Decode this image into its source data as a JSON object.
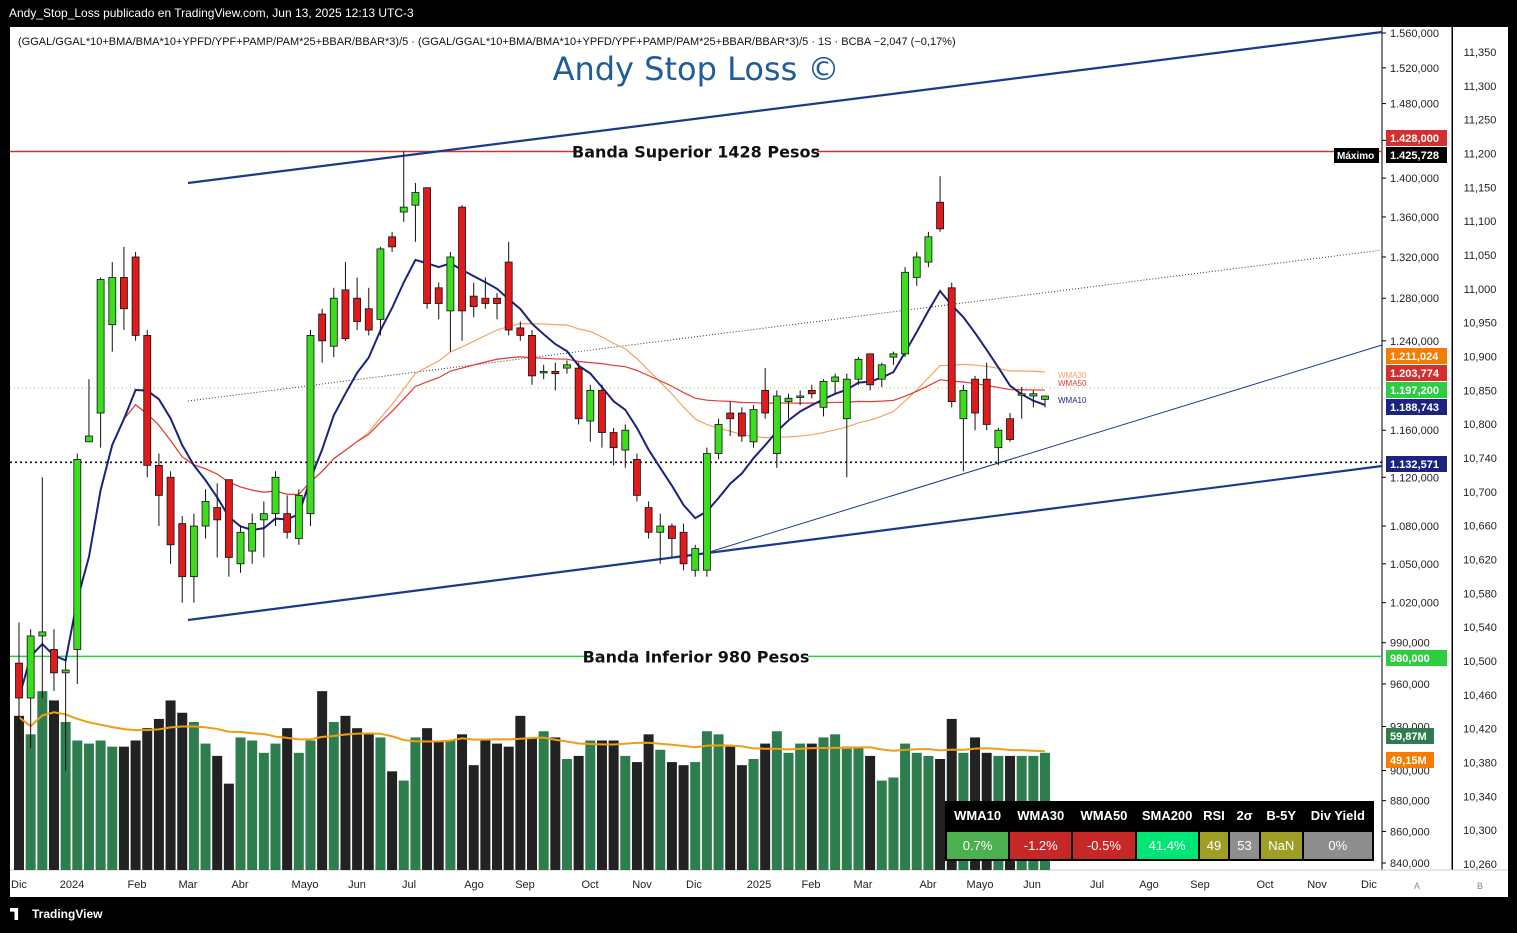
{
  "header": {
    "publisher_line": "Andy_Stop_Loss publicado en TradingView.com, Jun 13, 2025 12:13 UTC-3"
  },
  "footer": {
    "brand": "TradingView"
  },
  "chart_data": {
    "type": "candlestick",
    "symbol_line": "(GGAL/GGAL*10+BMA/BMA*10+YPFD/YPF+PAMP/PAM*25+BBAR/BBAR*3)/5 · (GGAL/GGAL*10+BMA/BMA*10+YPFD/YPF+PAMP/PAM*25+BBAR/BBAR*3)/5 · 1S · BCBA  −2,047 (−0,17%)",
    "watermark": "Andy Stop Loss ©",
    "x_tick_labels": [
      "Dic",
      "2024",
      "Feb",
      "Mar",
      "Abr",
      "Mayo",
      "Jun",
      "Jul",
      "Ago",
      "Sep",
      "Oct",
      "Nov",
      "Dic",
      "2025",
      "Feb",
      "Mar",
      "Abr",
      "Mayo",
      "Jun",
      "Jul",
      "Ago",
      "Sep",
      "Oct",
      "Nov",
      "Dic"
    ],
    "y_tick_labels": [
      "1.560,000",
      "1.520,000",
      "1.480,000",
      "1.440,000",
      "1.400,000",
      "1.360,000",
      "1.320,000",
      "1.280,000",
      "1.240,000",
      "1.160,000",
      "1.120,000",
      "1.080,000",
      "1.050,000",
      "1.020,000",
      "990,000",
      "960,000",
      "930,000",
      "900,000",
      "880,000",
      "860,000",
      "840,000"
    ],
    "y2_tick_labels": [
      "11,350",
      "11,300",
      "11,250",
      "11,200",
      "11,150",
      "11,100",
      "11,050",
      "11,000",
      "10,950",
      "10,900",
      "10,850",
      "10,800",
      "10,740",
      "10,700",
      "10,660",
      "10,620",
      "10,580",
      "10,540",
      "10,500",
      "10,460",
      "10,420",
      "10,380",
      "10,340",
      "10,300",
      "10,260"
    ],
    "y2_footer": [
      "A",
      "B"
    ],
    "annotations": {
      "upper_band": "Banda Superior 1428 Pesos",
      "lower_band": "Banda Inferior 980 Pesos",
      "maximo_label": "Máximo",
      "ma_labels": [
        "WMA30",
        "WMA50",
        "WMA10"
      ]
    },
    "price_labels": [
      {
        "text": "1.428,000",
        "color": "#d32f2f"
      },
      {
        "text": "1.425,728",
        "color": "#000000"
      },
      {
        "text": "1.211,024",
        "color": "#f57c00"
      },
      {
        "text": "1.203,774",
        "color": "#d32f2f"
      },
      {
        "text": "1.197,200",
        "color": "#2ecc40"
      },
      {
        "text": "1.188,743",
        "color": "#1a237e"
      },
      {
        "text": "1.132,571",
        "color": "#1a237e"
      },
      {
        "text": "980,000",
        "color": "#2ecc40"
      },
      {
        "text": "59,87M",
        "color": "#2e7d4f"
      },
      {
        "text": "49,15M",
        "color": "#f57c00"
      }
    ],
    "candles": [
      {
        "o": 975,
        "h": 1005,
        "l": 920,
        "c": 950
      },
      {
        "o": 950,
        "h": 1000,
        "l": 915,
        "c": 995
      },
      {
        "o": 995,
        "h": 1120,
        "l": 950,
        "c": 998
      },
      {
        "o": 985,
        "h": 1000,
        "l": 955,
        "c": 968
      },
      {
        "o": 968,
        "h": 978,
        "l": 900,
        "c": 970
      },
      {
        "o": 985,
        "h": 1140,
        "l": 960,
        "c": 1135
      },
      {
        "o": 1150,
        "h": 1205,
        "l": 1150,
        "c": 1155
      },
      {
        "o": 1175,
        "h": 1300,
        "l": 1145,
        "c": 1298
      },
      {
        "o": 1255,
        "h": 1315,
        "l": 1230,
        "c": 1300
      },
      {
        "o": 1300,
        "h": 1330,
        "l": 1250,
        "c": 1270
      },
      {
        "o": 1320,
        "h": 1325,
        "l": 1240,
        "c": 1245
      },
      {
        "o": 1245,
        "h": 1250,
        "l": 1120,
        "c": 1130
      },
      {
        "o": 1130,
        "h": 1140,
        "l": 1080,
        "c": 1105
      },
      {
        "o": 1120,
        "h": 1125,
        "l": 1050,
        "c": 1065
      },
      {
        "o": 1082,
        "h": 1088,
        "l": 1020,
        "c": 1040
      },
      {
        "o": 1040,
        "h": 1090,
        "l": 1020,
        "c": 1080
      },
      {
        "o": 1080,
        "h": 1110,
        "l": 1070,
        "c": 1100
      },
      {
        "o": 1095,
        "h": 1115,
        "l": 1055,
        "c": 1085
      },
      {
        "o": 1118,
        "h": 1118,
        "l": 1040,
        "c": 1055
      },
      {
        "o": 1050,
        "h": 1080,
        "l": 1043,
        "c": 1075
      },
      {
        "o": 1060,
        "h": 1090,
        "l": 1050,
        "c": 1082
      },
      {
        "o": 1085,
        "h": 1100,
        "l": 1055,
        "c": 1090
      },
      {
        "o": 1090,
        "h": 1125,
        "l": 1080,
        "c": 1120
      },
      {
        "o": 1090,
        "h": 1105,
        "l": 1070,
        "c": 1075
      },
      {
        "o": 1070,
        "h": 1110,
        "l": 1065,
        "c": 1105
      },
      {
        "o": 1090,
        "h": 1250,
        "l": 1080,
        "c": 1245
      },
      {
        "o": 1265,
        "h": 1270,
        "l": 1220,
        "c": 1240
      },
      {
        "o": 1235,
        "h": 1290,
        "l": 1225,
        "c": 1280
      },
      {
        "o": 1288,
        "h": 1315,
        "l": 1240,
        "c": 1242
      },
      {
        "o": 1280,
        "h": 1300,
        "l": 1250,
        "c": 1258
      },
      {
        "o": 1270,
        "h": 1290,
        "l": 1245,
        "c": 1250
      },
      {
        "o": 1260,
        "h": 1330,
        "l": 1245,
        "c": 1328
      },
      {
        "o": 1340,
        "h": 1345,
        "l": 1325,
        "c": 1330
      },
      {
        "o": 1365,
        "h": 1428,
        "l": 1355,
        "c": 1370
      },
      {
        "o": 1372,
        "h": 1395,
        "l": 1335,
        "c": 1385
      },
      {
        "o": 1390,
        "h": 1390,
        "l": 1270,
        "c": 1275
      },
      {
        "o": 1290,
        "h": 1295,
        "l": 1260,
        "c": 1275
      },
      {
        "o": 1268,
        "h": 1325,
        "l": 1230,
        "c": 1320
      },
      {
        "o": 1370,
        "h": 1372,
        "l": 1240,
        "c": 1268
      },
      {
        "o": 1282,
        "h": 1295,
        "l": 1262,
        "c": 1272
      },
      {
        "o": 1280,
        "h": 1300,
        "l": 1270,
        "c": 1275
      },
      {
        "o": 1280,
        "h": 1285,
        "l": 1260,
        "c": 1275
      },
      {
        "o": 1315,
        "h": 1335,
        "l": 1245,
        "c": 1250
      },
      {
        "o": 1252,
        "h": 1258,
        "l": 1240,
        "c": 1245
      },
      {
        "o": 1245,
        "h": 1250,
        "l": 1200,
        "c": 1208
      },
      {
        "o": 1212,
        "h": 1218,
        "l": 1205,
        "c": 1212
      },
      {
        "o": 1212,
        "h": 1220,
        "l": 1195,
        "c": 1210
      },
      {
        "o": 1215,
        "h": 1222,
        "l": 1210,
        "c": 1218
      },
      {
        "o": 1215,
        "h": 1220,
        "l": 1165,
        "c": 1170
      },
      {
        "o": 1168,
        "h": 1200,
        "l": 1150,
        "c": 1195
      },
      {
        "o": 1195,
        "h": 1200,
        "l": 1145,
        "c": 1158
      },
      {
        "o": 1158,
        "h": 1162,
        "l": 1130,
        "c": 1145
      },
      {
        "o": 1143,
        "h": 1165,
        "l": 1128,
        "c": 1160
      },
      {
        "o": 1135,
        "h": 1140,
        "l": 1100,
        "c": 1105
      },
      {
        "o": 1095,
        "h": 1100,
        "l": 1070,
        "c": 1075
      },
      {
        "o": 1075,
        "h": 1090,
        "l": 1050,
        "c": 1080
      },
      {
        "o": 1080,
        "h": 1082,
        "l": 1055,
        "c": 1070
      },
      {
        "o": 1075,
        "h": 1082,
        "l": 1045,
        "c": 1050
      },
      {
        "o": 1045,
        "h": 1065,
        "l": 1040,
        "c": 1062
      },
      {
        "o": 1045,
        "h": 1145,
        "l": 1040,
        "c": 1140
      },
      {
        "o": 1140,
        "h": 1170,
        "l": 1135,
        "c": 1165
      },
      {
        "o": 1175,
        "h": 1185,
        "l": 1155,
        "c": 1170
      },
      {
        "o": 1175,
        "h": 1180,
        "l": 1150,
        "c": 1155
      },
      {
        "o": 1150,
        "h": 1182,
        "l": 1145,
        "c": 1178
      },
      {
        "o": 1195,
        "h": 1215,
        "l": 1170,
        "c": 1175
      },
      {
        "o": 1140,
        "h": 1195,
        "l": 1128,
        "c": 1190
      },
      {
        "o": 1185,
        "h": 1192,
        "l": 1170,
        "c": 1188
      },
      {
        "o": 1190,
        "h": 1195,
        "l": 1182,
        "c": 1190
      },
      {
        "o": 1195,
        "h": 1200,
        "l": 1188,
        "c": 1192
      },
      {
        "o": 1180,
        "h": 1205,
        "l": 1172,
        "c": 1203
      },
      {
        "o": 1203,
        "h": 1210,
        "l": 1192,
        "c": 1207
      },
      {
        "o": 1170,
        "h": 1210,
        "l": 1120,
        "c": 1205
      },
      {
        "o": 1205,
        "h": 1225,
        "l": 1200,
        "c": 1223
      },
      {
        "o": 1228,
        "h": 1228,
        "l": 1195,
        "c": 1200
      },
      {
        "o": 1205,
        "h": 1220,
        "l": 1198,
        "c": 1218
      },
      {
        "o": 1225,
        "h": 1230,
        "l": 1218,
        "c": 1228
      },
      {
        "o": 1228,
        "h": 1310,
        "l": 1225,
        "c": 1305
      },
      {
        "o": 1300,
        "h": 1325,
        "l": 1292,
        "c": 1320
      },
      {
        "o": 1315,
        "h": 1345,
        "l": 1310,
        "c": 1340
      },
      {
        "o": 1375,
        "h": 1402,
        "l": 1345,
        "c": 1348
      },
      {
        "o": 1290,
        "h": 1295,
        "l": 1180,
        "c": 1185
      },
      {
        "o": 1170,
        "h": 1200,
        "l": 1125,
        "c": 1195
      },
      {
        "o": 1205,
        "h": 1208,
        "l": 1160,
        "c": 1175
      },
      {
        "o": 1205,
        "h": 1220,
        "l": 1160,
        "c": 1165
      },
      {
        "o": 1145,
        "h": 1162,
        "l": 1130,
        "c": 1160
      },
      {
        "o": 1170,
        "h": 1175,
        "l": 1150,
        "c": 1152
      },
      {
        "o": 1192,
        "h": 1198,
        "l": 1170,
        "c": 1192
      },
      {
        "o": 1190,
        "h": 1195,
        "l": 1180,
        "c": 1192
      },
      {
        "o": 1187,
        "h": 1190,
        "l": 1180,
        "c": 1190
      }
    ],
    "volume_m": [
      50,
      44,
      58,
      55,
      48,
      42,
      41,
      42,
      40,
      40,
      42,
      46,
      49,
      55,
      51,
      48,
      41,
      37,
      28,
      43,
      42,
      38,
      41,
      46,
      38,
      42,
      58,
      48,
      50,
      46,
      44,
      43,
      32,
      29,
      43,
      46,
      42,
      42,
      44,
      34,
      42,
      41,
      40,
      50,
      43,
      45,
      43,
      36,
      37,
      42,
      42,
      42,
      37,
      35,
      44,
      39,
      35,
      34,
      35,
      45,
      44,
      40,
      34,
      36,
      41,
      45,
      38,
      41,
      41,
      43,
      44,
      40,
      40,
      37,
      29,
      30,
      41,
      38,
      37,
      36,
      49,
      38,
      43,
      38,
      37,
      37,
      37,
      37,
      38
    ],
    "table": {
      "headers": [
        "WMA10",
        "WMA30",
        "WMA50",
        "SMA200",
        "RSI",
        "2σ",
        "B-5Y",
        "Div Yield"
      ],
      "values": [
        "0.7%",
        "-1.2%",
        "-0.5%",
        "41.4%",
        "49",
        "53",
        "NaN",
        "0%"
      ],
      "colors": [
        "#4caf50",
        "#c62828",
        "#c62828",
        "#00e676",
        "#9e9d24",
        "#8e8e8e",
        "#9e9d24",
        "#8e8e8e"
      ]
    }
  }
}
